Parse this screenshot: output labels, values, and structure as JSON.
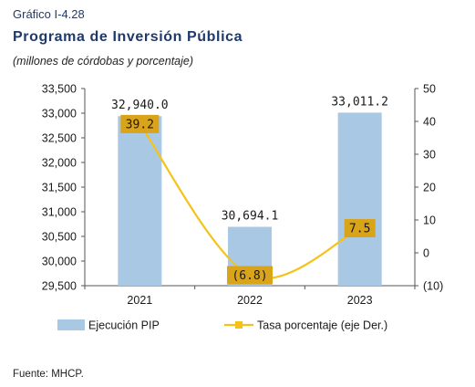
{
  "figure": {
    "label": "Gráfico I-4.28",
    "title": "Programa de Inversión Pública",
    "subtitle": "(millones de córdobas y porcentaje)",
    "source": "Fuente: MHCP."
  },
  "chart_data": {
    "type": "bar",
    "categories": [
      "2021",
      "2022",
      "2023"
    ],
    "series": [
      {
        "name": "Ejecución PIP",
        "type": "bar",
        "axis": "left",
        "values": [
          32940.0,
          30694.1,
          33011.2
        ],
        "labels": [
          "32,940.0",
          "30,694.1",
          "33,011.2"
        ]
      },
      {
        "name": "Tasa porcentaje (eje Der.)",
        "type": "line",
        "axis": "right",
        "values": [
          39.2,
          -6.8,
          7.5
        ],
        "labels": [
          "39.2",
          "(6.8)",
          "7.5"
        ]
      }
    ],
    "y_left": {
      "min": 29500,
      "max": 33500,
      "step": 500,
      "tick_labels": [
        "29,500",
        "30,000",
        "30,500",
        "31,000",
        "31,500",
        "32,000",
        "32,500",
        "33,000",
        "33,500"
      ]
    },
    "y_right": {
      "min": -10,
      "max": 50,
      "step": 10,
      "tick_labels": [
        "(10)",
        "0",
        "10",
        "20",
        "30",
        "40",
        "50"
      ]
    },
    "grid": false,
    "legend_position": "bottom",
    "colors": {
      "bar": "#a9c8e3",
      "line": "#f5c318",
      "label_box": "#d9a31a",
      "title": "#1f3a6a"
    }
  }
}
